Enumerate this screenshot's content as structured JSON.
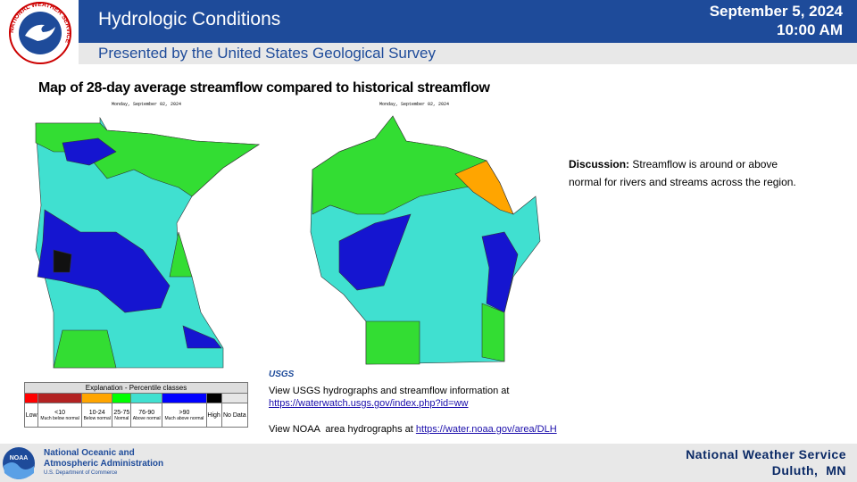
{
  "header": {
    "logo_text": "NATIONAL WEATHER SERVICE",
    "title": "Hydrologic Conditions",
    "subtitle": "Presented by the United States Geological Survey",
    "date": "September 5, 2024",
    "time": "10:00 AM"
  },
  "heading": "Map of 28-day average streamflow compared to historical streamflow",
  "maps": [
    {
      "date_label": "Monday, September 02, 2024"
    },
    {
      "date_label": "Monday, September 02, 2024"
    }
  ],
  "legend": {
    "title": "Explanation - Percentile classes",
    "classes": [
      {
        "label": "Low",
        "color": "#ff0000"
      },
      {
        "label": "<10",
        "sublabel": "Much below normal",
        "color": "#b22222"
      },
      {
        "label": "10-24",
        "sublabel": "Below normal",
        "color": "#ffa500"
      },
      {
        "label": "25-75",
        "sublabel": "Normal",
        "color": "#00ff00"
      },
      {
        "label": "76-90",
        "sublabel": "Above normal",
        "color": "#40e0d0"
      },
      {
        "label": ">90",
        "sublabel": "Much above normal",
        "color": "#0000ff"
      },
      {
        "label": "High",
        "color": "#000000"
      },
      {
        "label": "No Data",
        "color": "#e6e6e6"
      }
    ]
  },
  "usgs": {
    "logo": "USGS",
    "line1": "View USGS hydrographs and streamflow information at",
    "link1": "https://waterwatch.usgs.gov/index.php?id=ww",
    "line2": "View NOAA  area hydrographs at ",
    "link2": "https://water.noaa.gov/area/DLH"
  },
  "discussion": {
    "label": "Discussion:",
    "text": " Streamflow is around or above normal for rivers and streams across the region."
  },
  "footer": {
    "noaa_logo": "NOAA",
    "noaa_line1": "National Oceanic and",
    "noaa_line2": "Atmospheric Administration",
    "noaa_line3": "U.S. Department of Commerce",
    "nws_line1": "National Weather Service",
    "nws_line2": "Duluth,  MN"
  }
}
